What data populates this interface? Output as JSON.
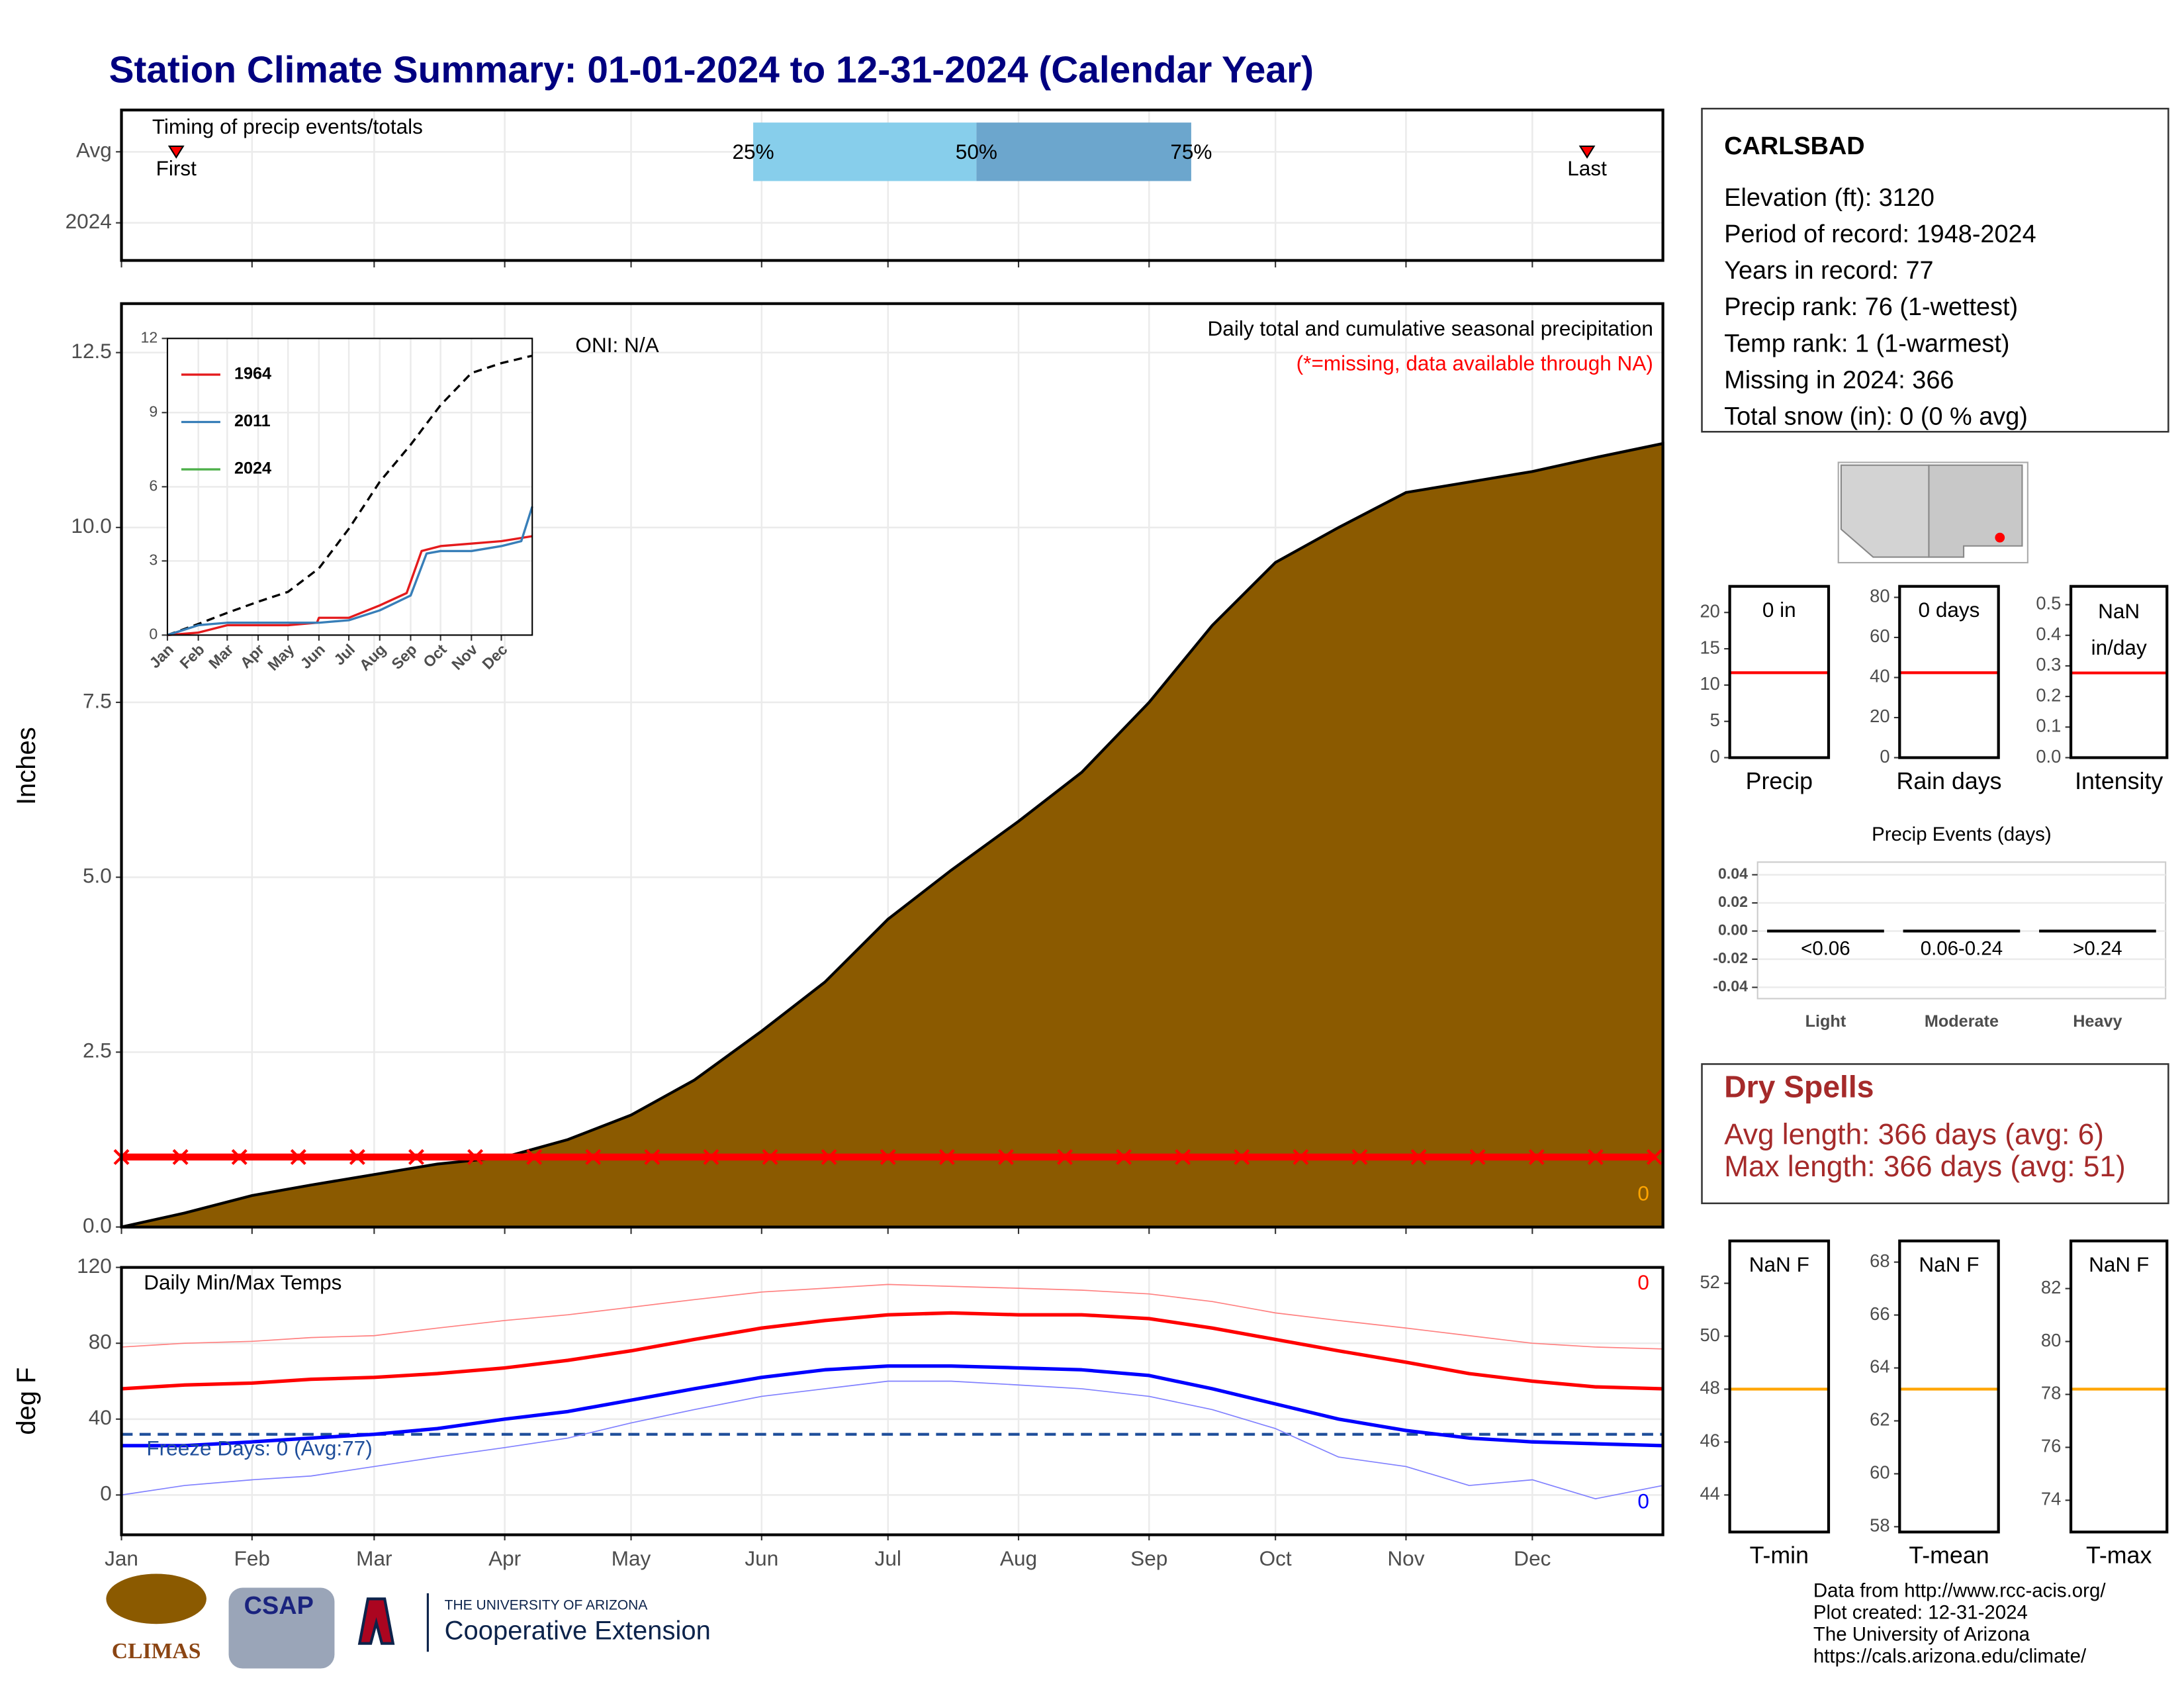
{
  "title": "Station Climate Summary: 01-01-2024 to 12-31-2024 (Calendar Year)",
  "chart_data": [
    {
      "type": "timing",
      "title": "Timing of precip events/totals",
      "categories": [
        "Avg",
        "2024"
      ],
      "xlim": [
        0,
        366
      ],
      "markers": [
        {
          "label": "First",
          "x": 13
        },
        {
          "label": "Last",
          "x": 348
        }
      ],
      "quartiles": {
        "labels": [
          "25%",
          "50%",
          "75%"
        ],
        "x": [
          150,
          203,
          254
        ],
        "colors": [
          "#87ceeb",
          "#6ca6cd"
        ]
      }
    },
    {
      "type": "area",
      "title": "Daily total and cumulative seasonal precipitation",
      "subtitle": "(*=missing, data available through NA)",
      "annotation": "ONI: N/A",
      "corner_label": "0",
      "y_label": "Inches",
      "color": "#8b5a00",
      "grid": true,
      "xlim": [
        0,
        366
      ],
      "ylim": [
        0,
        13.2
      ],
      "yticks": [
        {
          "value": 0,
          "label": "0.0"
        },
        2.5,
        {
          "value": 5,
          "label": "5.0"
        },
        7.5,
        {
          "value": 10,
          "label": "10.0"
        },
        12.5
      ],
      "x": [
        0,
        15,
        31,
        45,
        60,
        75,
        91,
        106,
        121,
        136,
        152,
        167,
        182,
        197,
        213,
        228,
        244,
        259,
        274,
        289,
        305,
        320,
        335,
        350,
        366
      ],
      "values": [
        0,
        0.2,
        0.45,
        0.6,
        0.75,
        0.9,
        1.0,
        1.25,
        1.6,
        2.1,
        2.8,
        3.5,
        4.4,
        5.1,
        5.8,
        6.5,
        7.5,
        8.6,
        9.5,
        10.0,
        10.5,
        10.65,
        10.8,
        11.0,
        11.2
      ],
      "missing": {
        "color": "#ff0000",
        "x": [
          0,
          14,
          28,
          42,
          56,
          70,
          84,
          98,
          112,
          126,
          140,
          154,
          168,
          182,
          196,
          210,
          224,
          238,
          252,
          266,
          280,
          294,
          308,
          322,
          336,
          350,
          364
        ],
        "values": [
          1,
          1,
          1,
          1,
          1,
          1,
          1,
          1,
          1,
          1,
          1,
          1,
          1,
          1,
          1,
          1,
          1,
          1,
          1,
          1,
          1,
          1,
          1,
          1,
          1,
          1,
          1
        ]
      }
    },
    {
      "type": "line",
      "grid": true,
      "xlim": [
        0,
        366
      ],
      "ylim": [
        0,
        12
      ],
      "yticks": [
        0,
        3,
        6,
        9,
        12
      ],
      "xtick_rotation": 45,
      "xticks": [
        {
          "value": 0,
          "label": "Jan"
        },
        {
          "value": 31,
          "label": "Feb"
        },
        {
          "value": 60,
          "label": "Mar"
        },
        {
          "value": 91,
          "label": "Apr"
        },
        {
          "value": 121,
          "label": "May"
        },
        {
          "value": 152,
          "label": "Jun"
        },
        {
          "value": 182,
          "label": "Jul"
        },
        {
          "value": 213,
          "label": "Aug"
        },
        {
          "value": 244,
          "label": "Sep"
        },
        {
          "value": 274,
          "label": "Oct"
        },
        {
          "value": 305,
          "label": "Nov"
        },
        {
          "value": 335,
          "label": "Dec"
        }
      ],
      "average": {
        "color": "#000000",
        "x": [
          0,
          31,
          60,
          91,
          121,
          152,
          182,
          213,
          244,
          274,
          305,
          335,
          366
        ],
        "values": [
          0,
          0.45,
          0.9,
          1.35,
          1.75,
          2.7,
          4.3,
          6.2,
          7.7,
          9.3,
          10.6,
          11.0,
          11.3
        ]
      },
      "series": [
        {
          "name": "1964",
          "color": "#e41a1c",
          "x": [
            0,
            31,
            60,
            91,
            121,
            150,
            152,
            182,
            213,
            240,
            255,
            274,
            305,
            335,
            366
          ],
          "values": [
            0,
            0.1,
            0.4,
            0.4,
            0.4,
            0.5,
            0.7,
            0.7,
            1.2,
            1.7,
            3.4,
            3.6,
            3.7,
            3.8,
            4.0
          ]
        },
        {
          "name": "2011",
          "color": "#377eb8",
          "x": [
            0,
            31,
            60,
            91,
            121,
            152,
            182,
            213,
            244,
            260,
            274,
            305,
            335,
            355,
            366
          ],
          "values": [
            0,
            0.4,
            0.5,
            0.5,
            0.5,
            0.5,
            0.6,
            1.0,
            1.6,
            3.3,
            3.4,
            3.4,
            3.6,
            3.8,
            5.2
          ]
        },
        {
          "name": "2024",
          "color": "#4daf4a",
          "x": [],
          "values": []
        }
      ]
    },
    {
      "type": "line",
      "title": "Daily Min/Max Temps",
      "y_label": "deg F",
      "grid": true,
      "freeze_label": "Freeze Days: 0 (Avg:77)",
      "freeze_line": 32,
      "max_label": "0",
      "min_label": "0",
      "xlim": [
        0,
        366
      ],
      "ylim": [
        -21,
        120
      ],
      "yticks": [
        0,
        40,
        80,
        120
      ],
      "xticks": [
        {
          "value": 0,
          "label": "Jan"
        },
        {
          "value": 31,
          "label": "Feb"
        },
        {
          "value": 60,
          "label": "Mar"
        },
        {
          "value": 91,
          "label": "Apr"
        },
        {
          "value": 121,
          "label": "May"
        },
        {
          "value": 152,
          "label": "Jun"
        },
        {
          "value": 182,
          "label": "Jul"
        },
        {
          "value": 213,
          "label": "Aug"
        },
        {
          "value": 244,
          "label": "Sep"
        },
        {
          "value": 274,
          "label": "Oct"
        },
        {
          "value": 305,
          "label": "Nov"
        },
        {
          "value": 335,
          "label": "Dec"
        }
      ],
      "x": [
        0,
        15,
        31,
        45,
        60,
        75,
        91,
        106,
        121,
        136,
        152,
        167,
        182,
        197,
        213,
        228,
        244,
        259,
        274,
        289,
        305,
        320,
        335,
        350,
        366
      ],
      "series": [
        {
          "color": "#ff8080",
          "line_width": 0.8,
          "values": [
            78,
            80,
            81,
            83,
            84,
            88,
            92,
            95,
            99,
            103,
            107,
            109,
            111,
            110,
            109,
            108,
            106,
            102,
            96,
            92,
            88,
            84,
            80,
            78,
            77
          ]
        },
        {
          "color": "#ff0000",
          "line_width": 2.5,
          "values": [
            56,
            58,
            59,
            61,
            62,
            64,
            67,
            71,
            76,
            82,
            88,
            92,
            95,
            96,
            95,
            95,
            93,
            88,
            82,
            76,
            70,
            64,
            60,
            57,
            56
          ]
        },
        {
          "color": "#0000ff",
          "line_width": 2.5,
          "values": [
            26,
            26,
            28,
            30,
            32,
            35,
            40,
            44,
            50,
            56,
            62,
            66,
            68,
            68,
            67,
            66,
            63,
            56,
            48,
            40,
            34,
            30,
            28,
            27,
            26
          ]
        },
        {
          "color": "#8080ff",
          "line_width": 0.8,
          "values": [
            0,
            5,
            8,
            10,
            15,
            20,
            25,
            30,
            38,
            45,
            52,
            56,
            60,
            60,
            58,
            56,
            52,
            45,
            35,
            20,
            15,
            5,
            8,
            -2,
            5
          ]
        }
      ]
    },
    {
      "type": "reference",
      "label": "Precip",
      "value_text": "0 in",
      "ylim": [
        0,
        23.6
      ],
      "yticks": [
        0,
        5,
        10,
        15,
        20
      ],
      "reference": 11.7,
      "color": "#ff0000"
    },
    {
      "type": "reference",
      "label": "Rain days",
      "value_text": "0 days",
      "ylim": [
        0,
        85.5
      ],
      "yticks": [
        0,
        20,
        40,
        60,
        80
      ],
      "reference": 42.4,
      "color": "#ff0000"
    },
    {
      "type": "reference",
      "label": "Intensity",
      "value_text": [
        "NaN",
        "in/day"
      ],
      "ylim": [
        0,
        0.56
      ],
      "yticks": [
        {
          "value": 0,
          "label": "0.0"
        },
        0.1,
        0.2,
        0.3,
        0.4,
        0.5
      ],
      "reference": 0.277,
      "color": "#ff0000"
    },
    {
      "type": "bar",
      "title": "Precip Events (days)",
      "categories": [
        "Light",
        "Moderate",
        "Heavy"
      ],
      "ranges": [
        "<0.06",
        "0.06-0.24",
        ">0.24"
      ],
      "values": [
        0,
        0,
        0
      ],
      "ylim": [
        -0.048,
        0.049
      ],
      "yticks": [
        -0.04,
        -0.02,
        {
          "value": 0,
          "label": "0.00"
        },
        0.02,
        0.04
      ],
      "grid": true
    },
    {
      "type": "reference",
      "label": "T-min",
      "value_text": "NaN F",
      "ylim": [
        42.6,
        53.6
      ],
      "yticks": [
        44,
        46,
        48,
        50,
        52
      ],
      "reference": 48.0,
      "color": "#ffa500"
    },
    {
      "type": "reference",
      "label": "T-mean",
      "value_text": "NaN F",
      "ylim": [
        57.8,
        68.8
      ],
      "yticks": [
        58,
        60,
        62,
        64,
        66,
        68
      ],
      "reference": 63.2,
      "color": "#ffa500"
    },
    {
      "type": "reference",
      "label": "T-max",
      "value_text": "NaN F",
      "ylim": [
        72.8,
        83.8
      ],
      "yticks": [
        74,
        76,
        78,
        80,
        82
      ],
      "reference": 78.2,
      "color": "#ffa500"
    }
  ],
  "station": {
    "name": "CARLSBAD",
    "lines": [
      "Elevation (ft): 3120",
      "Period of record: 1948-2024",
      "Years in record: 77",
      "Precip rank: 76 (1-wettest)",
      "Temp rank: 1 (1-warmest)",
      "Missing in 2024: 366",
      "Total snow (in): 0 (0 % avg)"
    ]
  },
  "dry_spells": {
    "title": "Dry Spells",
    "lines": [
      "Avg length: 366 days (avg: 6)",
      "Max length: 366 days (avg: 51)"
    ]
  },
  "logos": {
    "climas": "CLIMAS",
    "csap": "CSAP",
    "university": "THE UNIVERSITY OF ARIZONA",
    "extension": "Cooperative Extension"
  },
  "credits": [
    "Data from http://www.rcc-acis.org/",
    "Plot created: 12-31-2024",
    "The University of Arizona",
    "https://cals.arizona.edu/climate/"
  ]
}
